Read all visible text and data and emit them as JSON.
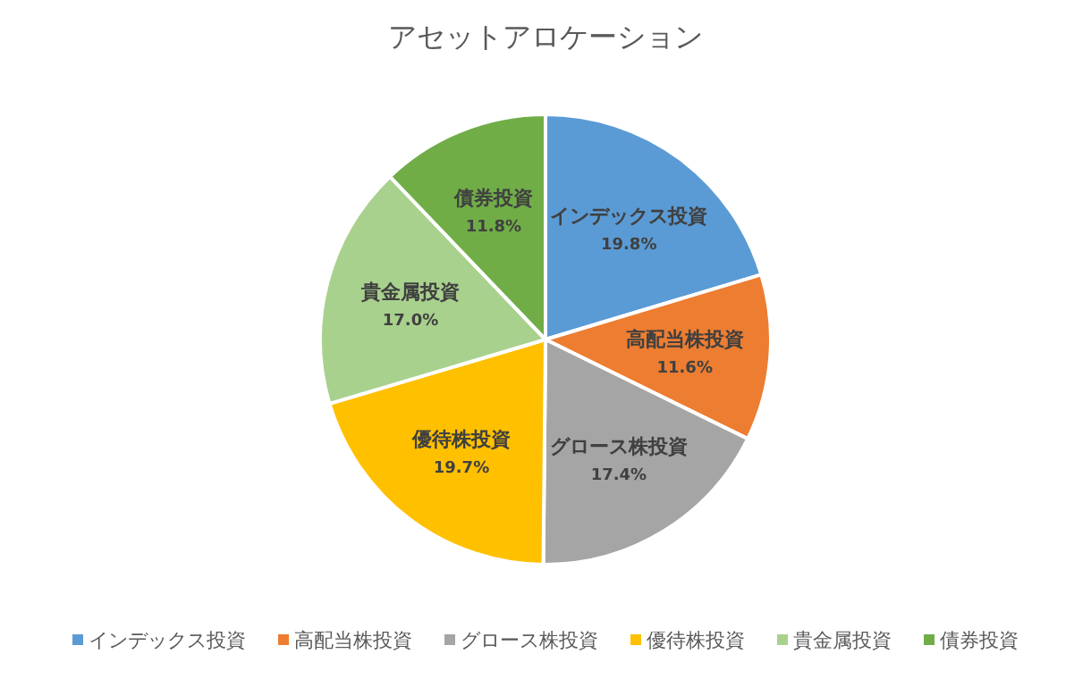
{
  "chart_data": {
    "type": "pie",
    "title": "アセットアロケーション",
    "categories": [
      "インデックス投資",
      "高配当株投資",
      "グロース株投資",
      "優待株投資",
      "貴金属投資",
      "債券投資"
    ],
    "values": [
      19.8,
      11.6,
      17.4,
      19.7,
      17.0,
      11.8
    ],
    "value_labels": [
      "19.8%",
      "11.6%",
      "17.4%",
      "19.7%",
      "17.0%",
      "11.8%"
    ],
    "colors": [
      "#5b9bd5",
      "#ed7d31",
      "#a5a5a5",
      "#ffc000",
      "#a9d18e",
      "#70ad47"
    ],
    "legend": "bottom"
  }
}
